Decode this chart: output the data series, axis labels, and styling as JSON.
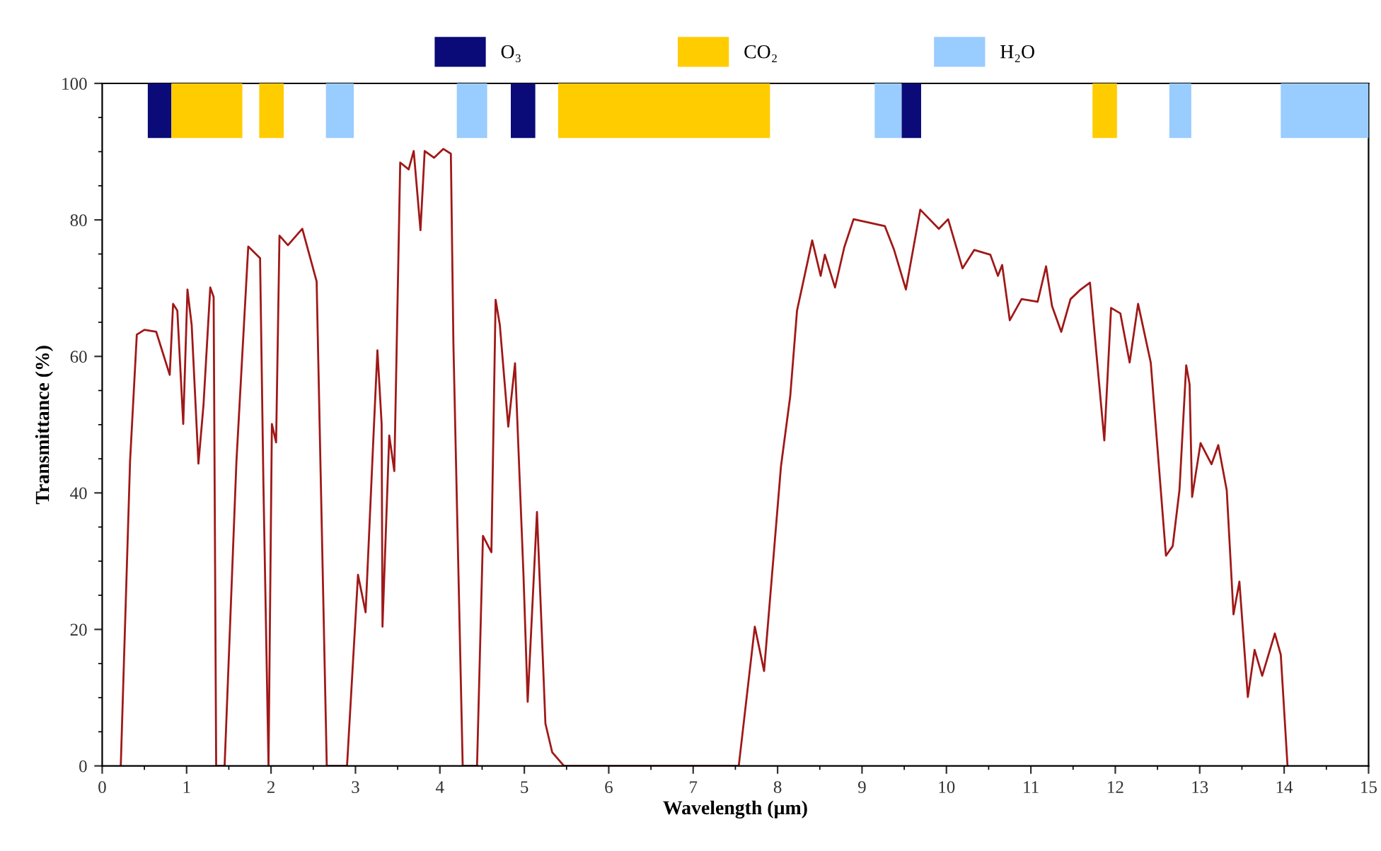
{
  "chart_data": {
    "type": "line",
    "xlabel": "Wavelength (µm)",
    "ylabel": "Transmittance (%)",
    "xlim": [
      0,
      15
    ],
    "xticks": [
      0,
      1,
      2,
      3,
      4,
      5,
      6,
      7,
      8,
      9,
      10,
      11,
      12,
      13,
      14,
      15
    ],
    "ylim": [
      0,
      100
    ],
    "yticks": [
      0,
      20,
      40,
      60,
      80,
      100
    ],
    "grid": false,
    "legend": "top",
    "marker": "none",
    "line_style": "solid",
    "series": [
      {
        "color": "#a01818",
        "x": [
          0.22,
          0.33,
          0.41,
          0.5,
          0.64,
          0.8,
          0.84,
          0.89,
          0.96,
          1.01,
          1.06,
          1.14,
          1.2,
          1.28,
          1.32,
          1.35,
          1.45,
          1.59,
          1.73,
          1.87,
          1.91,
          1.97,
          2.01,
          2.06,
          2.1,
          2.2,
          2.37,
          2.54,
          2.66,
          2.9,
          3.03,
          3.12,
          3.21,
          3.26,
          3.31,
          3.32,
          3.4,
          3.46,
          3.53,
          3.63,
          3.69,
          3.77,
          3.82,
          3.93,
          4.04,
          4.13,
          4.16,
          4.27,
          4.44,
          4.51,
          4.61,
          4.66,
          4.71,
          4.81,
          4.89,
          4.99,
          5.04,
          5.15,
          5.25,
          5.33,
          5.47,
          7.54,
          7.73,
          7.84,
          8.04,
          8.15,
          8.23,
          8.41,
          8.51,
          8.56,
          8.68,
          8.79,
          8.9,
          9.27,
          9.38,
          9.52,
          9.69,
          9.91,
          10.02,
          10.19,
          10.33,
          10.52,
          10.61,
          10.66,
          10.75,
          10.89,
          11.08,
          11.18,
          11.25,
          11.36,
          11.47,
          11.59,
          11.7,
          11.87,
          11.95,
          12.06,
          12.17,
          12.27,
          12.42,
          12.6,
          12.68,
          12.76,
          12.84,
          12.88,
          12.91,
          13.01,
          13.14,
          13.22,
          13.32,
          13.4,
          13.47,
          13.57,
          13.65,
          13.74,
          13.89,
          13.96,
          14.04
        ],
        "values": [
          0,
          44.6,
          63.2,
          63.9,
          63.6,
          57.3,
          67.7,
          66.7,
          50.1,
          69.8,
          64.6,
          44.3,
          52.9,
          70.1,
          68.7,
          0,
          0,
          44.6,
          76.1,
          74.4,
          41.1,
          0,
          50.1,
          47.4,
          77.7,
          76.3,
          78.7,
          71,
          0,
          0,
          28,
          22.5,
          47.4,
          60.9,
          50.1,
          20.4,
          48.4,
          43.2,
          88.4,
          87.4,
          90.1,
          78.5,
          90.1,
          89.1,
          90.4,
          89.7,
          61.9,
          0,
          0,
          33.7,
          31.3,
          68.3,
          64.6,
          49.7,
          59,
          28,
          9.4,
          37.2,
          6.2,
          2,
          0,
          0,
          20.4,
          13.9,
          43.9,
          54.2,
          66.7,
          77,
          71.8,
          74.9,
          70.1,
          76,
          80.1,
          79.1,
          75.6,
          69.8,
          81.5,
          78.7,
          80.1,
          72.9,
          75.6,
          74.9,
          71.8,
          73.4,
          65.3,
          68.4,
          68,
          73.2,
          67.4,
          63.6,
          68.4,
          69.8,
          70.8,
          47.7,
          67.1,
          66.3,
          59.1,
          67.7,
          59.1,
          30.8,
          32.2,
          40.4,
          58.7,
          55.9,
          39.4,
          47.3,
          44.2,
          47,
          40.4,
          22.2,
          27,
          10.1,
          17,
          13.2,
          19.4,
          16.3,
          0
        ]
      }
    ],
    "bands": [
      {
        "axis": "x",
        "from": 0.54,
        "to": 0.82,
        "color": "#0a0a78",
        "label": "O₃"
      },
      {
        "axis": "x",
        "from": 0.82,
        "to": 1.66,
        "color": "#ffcc00",
        "label": "CO₂"
      },
      {
        "axis": "x",
        "from": 1.86,
        "to": 2.15,
        "color": "#ffcc00"
      },
      {
        "axis": "x",
        "from": 2.65,
        "to": 2.98,
        "color": "#99ccff",
        "label": "H₂O"
      },
      {
        "axis": "x",
        "from": 4.2,
        "to": 4.56,
        "color": "#99ccff"
      },
      {
        "axis": "x",
        "from": 4.84,
        "to": 5.13,
        "color": "#0a0a78"
      },
      {
        "axis": "x",
        "from": 5.4,
        "to": 7.91,
        "color": "#ffcc00"
      },
      {
        "axis": "x",
        "from": 9.15,
        "to": 9.47,
        "color": "#99ccff"
      },
      {
        "axis": "x",
        "from": 9.47,
        "to": 9.7,
        "color": "#0a0a78"
      },
      {
        "axis": "x",
        "from": 11.73,
        "to": 12.02,
        "color": "#ffcc00"
      },
      {
        "axis": "x",
        "from": 12.64,
        "to": 12.9,
        "color": "#99ccff"
      },
      {
        "axis": "x",
        "from": 13.96,
        "to": 15.0,
        "color": "#99ccff"
      }
    ]
  }
}
